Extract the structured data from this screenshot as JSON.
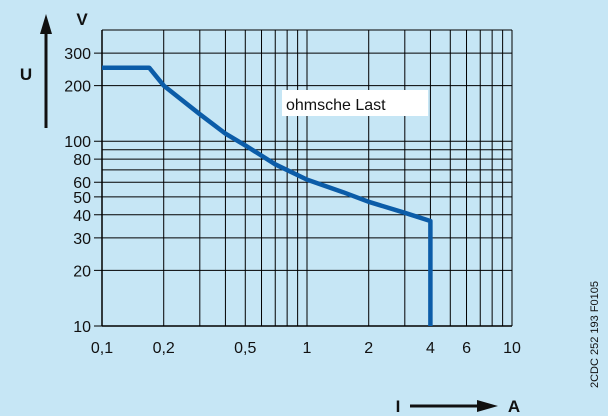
{
  "chart_data": {
    "type": "line",
    "x_scale": "log",
    "y_scale": "log",
    "xlim": [
      0.1,
      10
    ],
    "ylim": [
      10,
      400
    ],
    "grid": true,
    "x_ticks": [
      {
        "v": 0.1,
        "label": "0,1"
      },
      {
        "v": 0.2,
        "label": "0,2"
      },
      {
        "v": 0.5,
        "label": "0,5"
      },
      {
        "v": 1,
        "label": "1"
      },
      {
        "v": 2,
        "label": "2"
      },
      {
        "v": 4,
        "label": "4"
      },
      {
        "v": 6,
        "label": "6"
      },
      {
        "v": 10,
        "label": "10"
      }
    ],
    "y_ticks": [
      {
        "v": 10,
        "label": "10"
      },
      {
        "v": 20,
        "label": "20"
      },
      {
        "v": 30,
        "label": "30"
      },
      {
        "v": 40,
        "label": "40"
      },
      {
        "v": 50,
        "label": "50"
      },
      {
        "v": 60,
        "label": "60"
      },
      {
        "v": 80,
        "label": "80"
      },
      {
        "v": 100,
        "label": "100"
      },
      {
        "v": 200,
        "label": "200"
      },
      {
        "v": 300,
        "label": "300"
      }
    ],
    "x_unit": "A",
    "y_unit": "V",
    "xlabel": "I",
    "ylabel": "U",
    "series": [
      {
        "x": [
          0.1,
          0.17,
          0.2,
          0.3,
          0.4,
          0.5,
          0.7,
          1.0,
          1.5,
          2.0,
          3.0,
          4.0,
          4.0
        ],
        "y": [
          250,
          250,
          200,
          140,
          110,
          95,
          75,
          62,
          53,
          47,
          41,
          37,
          10
        ]
      }
    ],
    "annotations": [
      "ohmsche Last"
    ],
    "colors": {
      "background": "#c6e6f5",
      "curve": "#0b5ca8",
      "grid": "#000000"
    }
  },
  "figure_code": "2CDC 252 193 F0105"
}
